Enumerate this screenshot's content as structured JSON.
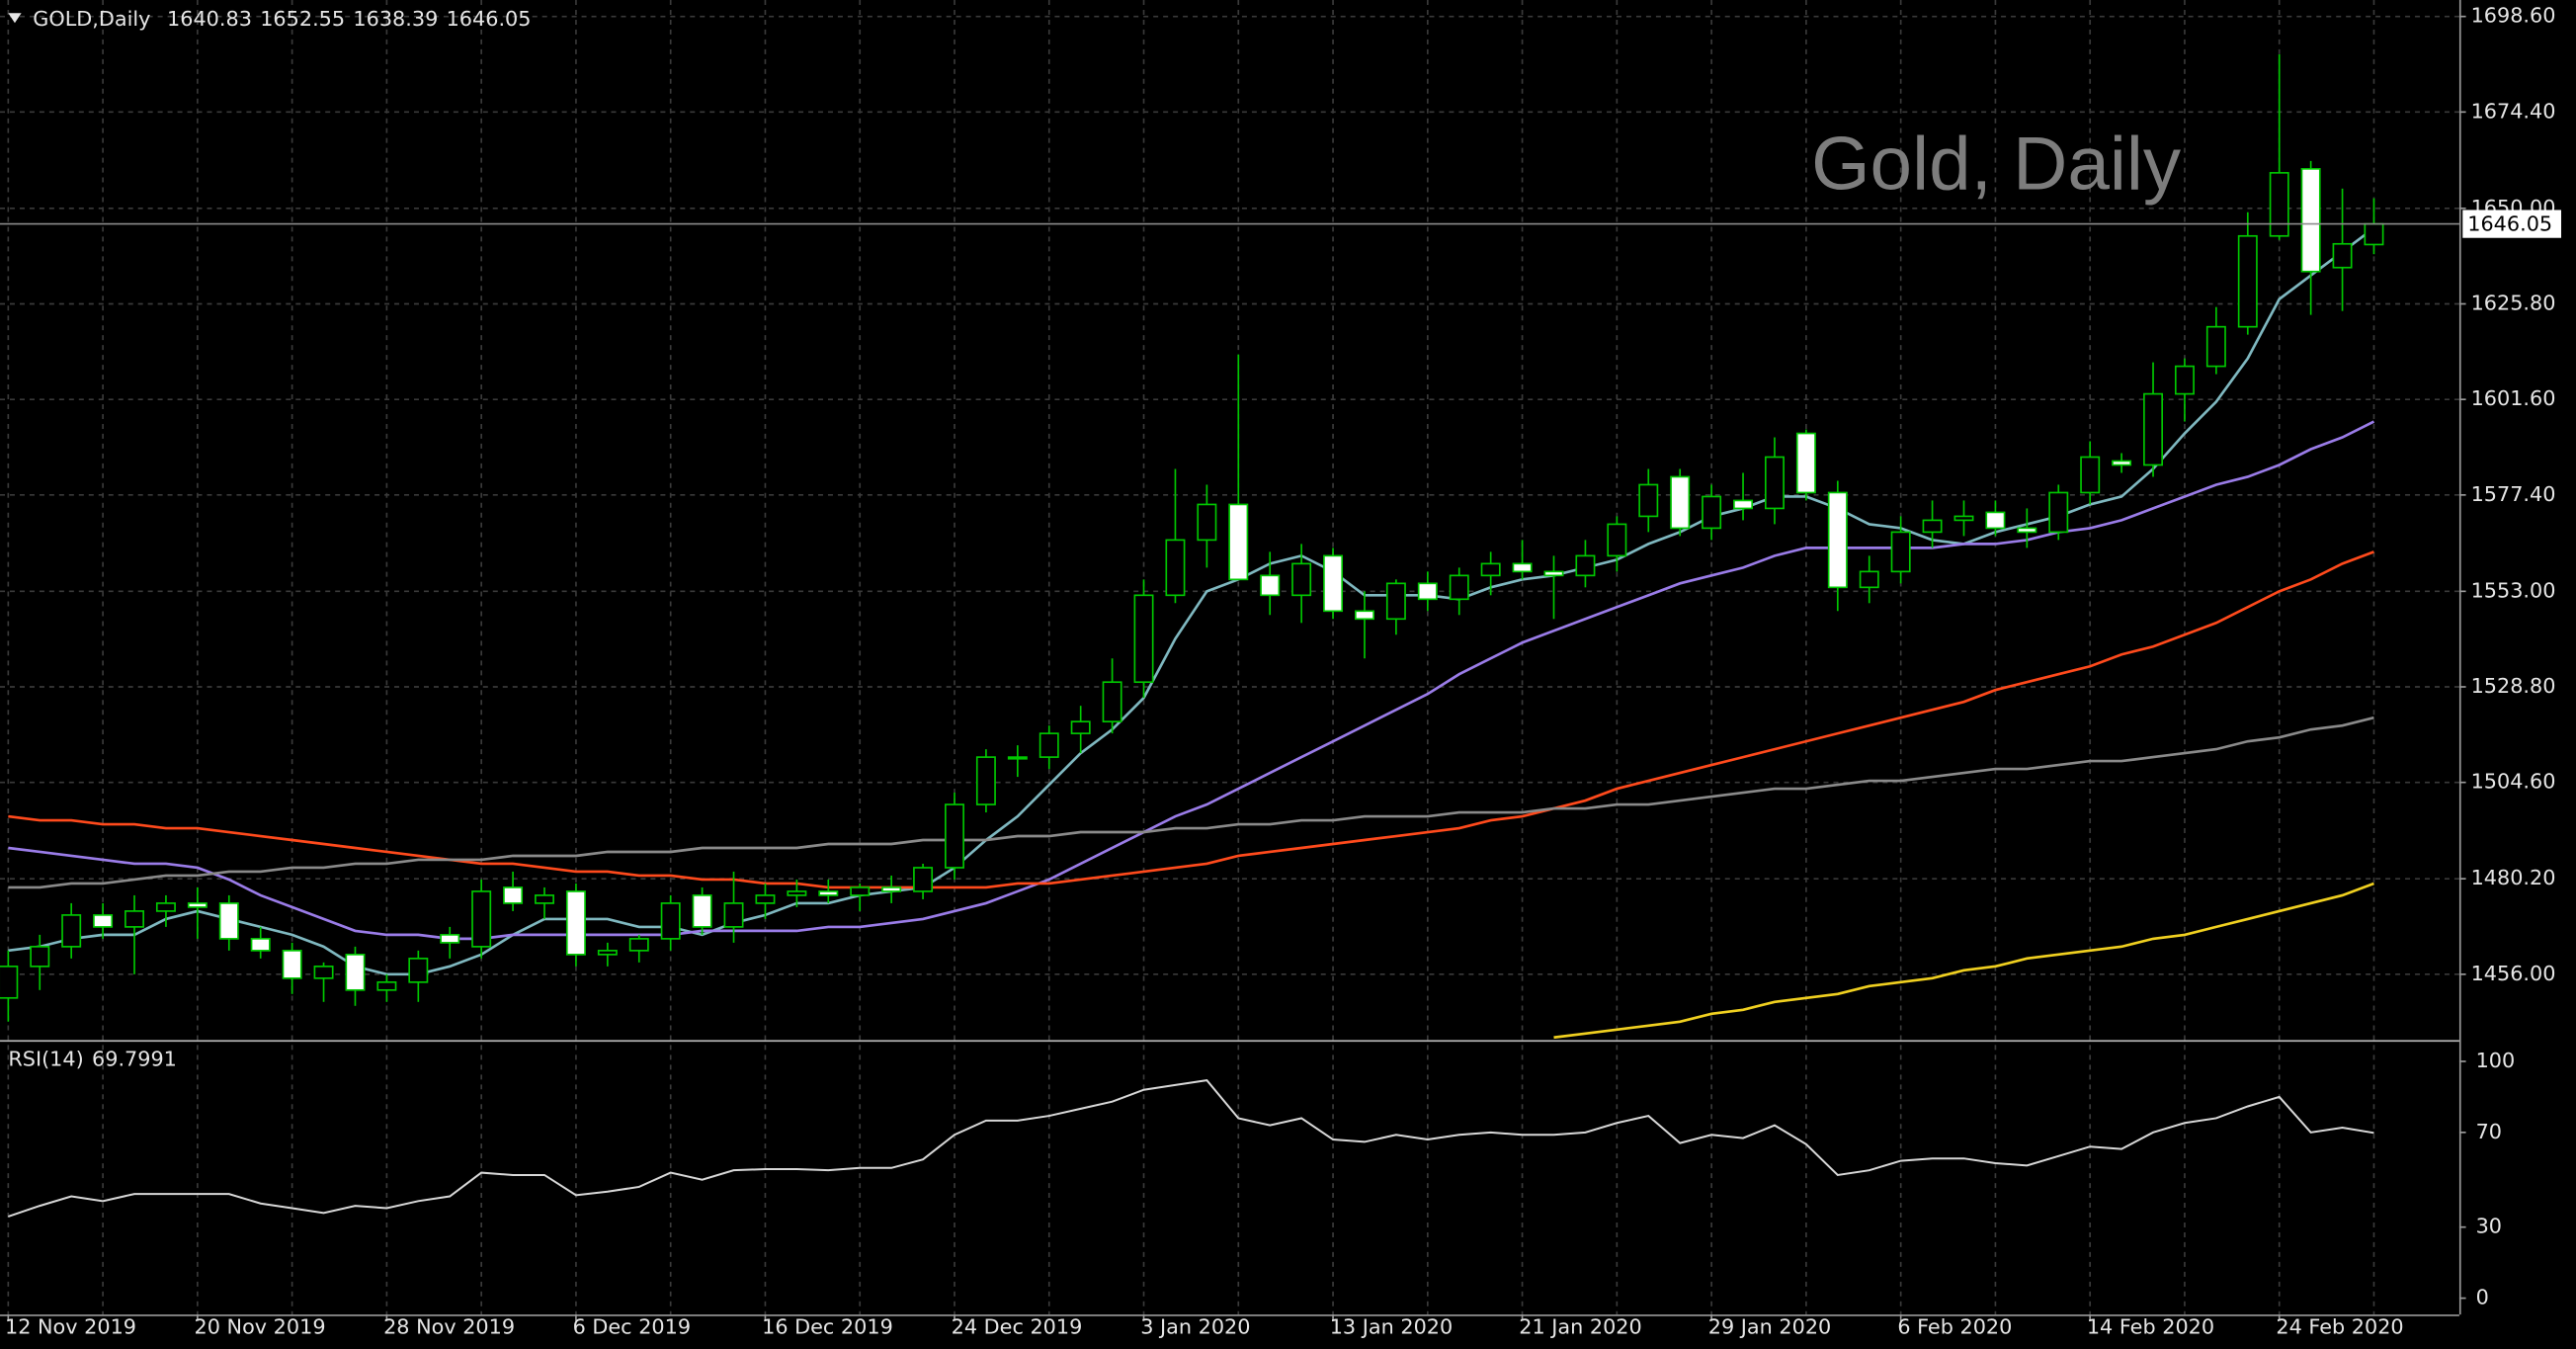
{
  "chart_data": [
    {
      "type": "candlestick",
      "title": "GOLD,Daily",
      "watermark": "Gold, Daily",
      "categories": [
        "12 Nov 2019",
        null,
        null,
        null,
        null,
        null,
        "20 Nov 2019",
        null,
        null,
        null,
        null,
        null,
        "28 Nov 2019",
        null,
        null,
        null,
        null,
        null,
        "6 Dec 2019",
        null,
        null,
        null,
        null,
        null,
        "16 Dec 2019",
        null,
        null,
        null,
        null,
        null,
        "24 Dec 2019",
        null,
        null,
        null,
        null,
        null,
        "3 Jan 2020",
        null,
        null,
        null,
        null,
        null,
        "13 Jan 2020",
        null,
        null,
        null,
        null,
        null,
        "21 Jan 2020",
        null,
        null,
        null,
        null,
        null,
        "29 Jan 2020",
        null,
        null,
        null,
        null,
        null,
        "6 Feb 2020",
        null,
        null,
        null,
        null,
        null,
        "14 Feb 2020",
        null,
        null,
        null,
        null,
        null,
        "24 Feb 2020",
        null,
        null,
        null
      ],
      "open": [
        1450,
        1458,
        1463,
        1471,
        1468,
        1472,
        1474,
        1474,
        1465,
        1462,
        1455,
        1461,
        1452,
        1454,
        1466,
        1463,
        1478,
        1474,
        1477,
        1461,
        1462,
        1465,
        1476,
        1468,
        1474,
        1476,
        1477,
        1476,
        1478,
        1477,
        1483,
        1499,
        1511,
        1511,
        1517,
        1520,
        1530,
        1552,
        1566,
        1575,
        1557,
        1552,
        1562,
        1548,
        1546,
        1555,
        1551,
        1557,
        1560,
        1558,
        1557,
        1562,
        1572,
        1582,
        1569,
        1576,
        1574,
        1593,
        1578,
        1554,
        1558,
        1568,
        1571,
        1573,
        1569,
        1568,
        1578,
        1586,
        1585,
        1603,
        1610,
        1620,
        1643,
        1660,
        1635,
        1640.83
      ],
      "high": [
        1462,
        1466,
        1474,
        1474,
        1476,
        1476,
        1478,
        1476,
        1468,
        1464,
        1459,
        1463,
        1456,
        1462,
        1468,
        1480,
        1482,
        1478,
        1479,
        1464,
        1466,
        1476,
        1478,
        1482,
        1479,
        1480,
        1480,
        1479,
        1481,
        1484,
        1502,
        1513,
        1514,
        1519,
        1524,
        1536,
        1556,
        1584,
        1580,
        1613,
        1563,
        1565,
        1564,
        1553,
        1556,
        1558,
        1559,
        1563,
        1566,
        1562,
        1566,
        1572,
        1584,
        1584,
        1580,
        1583,
        1592,
        1594,
        1581,
        1562,
        1572,
        1576,
        1576,
        1576,
        1574,
        1580,
        1591,
        1588,
        1611,
        1612,
        1625,
        1649,
        1689,
        1662,
        1655,
        1652.55
      ],
      "low": [
        1444,
        1452,
        1460,
        1465,
        1456,
        1468,
        1465,
        1462,
        1460,
        1451,
        1449,
        1448,
        1449,
        1449,
        1460,
        1460,
        1472,
        1470,
        1458,
        1458,
        1459,
        1462,
        1466,
        1464,
        1470,
        1473,
        1474,
        1472,
        1474,
        1475,
        1480,
        1497,
        1506,
        1508,
        1512,
        1517,
        1526,
        1550,
        1559,
        1556,
        1547,
        1545,
        1546,
        1536,
        1542,
        1548,
        1547,
        1552,
        1556,
        1546,
        1554,
        1558,
        1568,
        1567,
        1566,
        1571,
        1570,
        1576,
        1548,
        1550,
        1555,
        1564,
        1567,
        1567,
        1564,
        1566,
        1575,
        1583,
        1582,
        1596,
        1608,
        1618,
        1642,
        1623,
        1624,
        1638.39
      ],
      "close": [
        1458,
        1463,
        1471,
        1468,
        1472,
        1474,
        1473,
        1465,
        1462,
        1455,
        1458,
        1452,
        1454,
        1460,
        1464,
        1477,
        1474,
        1476,
        1461,
        1462,
        1465,
        1474,
        1468,
        1474,
        1476,
        1477,
        1476,
        1478,
        1477,
        1483,
        1499,
        1511,
        1511,
        1517,
        1520,
        1530,
        1552,
        1566,
        1575,
        1556,
        1552,
        1560,
        1548,
        1546,
        1555,
        1551,
        1557,
        1560,
        1558,
        1557,
        1562,
        1570,
        1580,
        1569,
        1577,
        1574,
        1587,
        1578,
        1554,
        1558,
        1568,
        1571,
        1572,
        1569,
        1568,
        1578,
        1587,
        1585,
        1603,
        1610,
        1620,
        1643,
        1659,
        1634,
        1641,
        1646.05
      ],
      "bull_fill": "#000000",
      "bear_fill": "#ffffff",
      "wick_color": "#00c800",
      "lines": [
        {
          "color": "#7fb8c0",
          "values": [
            1462,
            1463,
            1465,
            1466,
            1466,
            1470,
            1472,
            1470,
            1468,
            1466,
            1463,
            1458,
            1456,
            1456,
            1458,
            1461,
            1466,
            1470,
            1470,
            1470,
            1468,
            1468,
            1466,
            1469,
            1471,
            1474,
            1474,
            1476,
            1477,
            1478,
            1483,
            1490,
            1496,
            1504,
            1512,
            1518,
            1526,
            1541,
            1553,
            1556,
            1560,
            1562,
            1558,
            1552,
            1552,
            1552,
            1551,
            1554,
            1556,
            1557,
            1559,
            1561,
            1565,
            1568,
            1572,
            1574,
            1577,
            1577,
            1574,
            1570,
            1569,
            1566,
            1565,
            1568,
            1570,
            1572,
            1575,
            1577,
            1584,
            1593,
            1601,
            1612,
            1627,
            1633,
            1639,
            1645
          ]
        },
        {
          "color": "#9a7ce8",
          "values": [
            1488,
            1487,
            1486,
            1485,
            1484,
            1484,
            1483,
            1480,
            1476,
            1473,
            1470,
            1467,
            1466,
            1466,
            1465,
            1465,
            1466,
            1466,
            1466,
            1466,
            1466,
            1466,
            1467,
            1467,
            1467,
            1467,
            1468,
            1468,
            1469,
            1470,
            1472,
            1474,
            1477,
            1480,
            1484,
            1488,
            1492,
            1496,
            1499,
            1503,
            1507,
            1511,
            1515,
            1519,
            1523,
            1527,
            1532,
            1536,
            1540,
            1543,
            1546,
            1549,
            1552,
            1555,
            1557,
            1559,
            1562,
            1564,
            1564,
            1564,
            1564,
            1564,
            1565,
            1565,
            1566,
            1568,
            1569,
            1571,
            1574,
            1577,
            1580,
            1582,
            1585,
            1589,
            1592,
            1596
          ]
        },
        {
          "color": "#ff4a1c",
          "values": [
            1496,
            1495,
            1495,
            1494,
            1494,
            1493,
            1493,
            1492,
            1491,
            1490,
            1489,
            1488,
            1487,
            1486,
            1485,
            1484,
            1484,
            1483,
            1482,
            1482,
            1481,
            1481,
            1480,
            1480,
            1479,
            1479,
            1478,
            1478,
            1478,
            1478,
            1478,
            1478,
            1479,
            1479,
            1480,
            1481,
            1482,
            1483,
            1484,
            1486,
            1487,
            1488,
            1489,
            1490,
            1491,
            1492,
            1493,
            1495,
            1496,
            1498,
            1500,
            1503,
            1505,
            1507,
            1509,
            1511,
            1513,
            1515,
            1517,
            1519,
            1521,
            1523,
            1525,
            1528,
            1530,
            1532,
            1534,
            1537,
            1539,
            1542,
            1545,
            1549,
            1553,
            1556,
            1560,
            1563
          ]
        },
        {
          "color": "#8a8a8a",
          "values": [
            1478,
            1478,
            1479,
            1479,
            1480,
            1481,
            1481,
            1482,
            1482,
            1483,
            1483,
            1484,
            1484,
            1485,
            1485,
            1485,
            1486,
            1486,
            1486,
            1487,
            1487,
            1487,
            1488,
            1488,
            1488,
            1488,
            1489,
            1489,
            1489,
            1490,
            1490,
            1490,
            1491,
            1491,
            1492,
            1492,
            1492,
            1493,
            1493,
            1494,
            1494,
            1495,
            1495,
            1496,
            1496,
            1496,
            1497,
            1497,
            1497,
            1498,
            1498,
            1499,
            1499,
            1500,
            1501,
            1502,
            1503,
            1503,
            1504,
            1505,
            1505,
            1506,
            1507,
            1508,
            1508,
            1509,
            1510,
            1510,
            1511,
            1512,
            1513,
            1515,
            1516,
            1518,
            1519,
            1521
          ]
        },
        {
          "color": "#f0d020",
          "values": [
            null,
            null,
            null,
            null,
            null,
            null,
            null,
            null,
            null,
            null,
            null,
            null,
            null,
            null,
            null,
            null,
            null,
            null,
            null,
            null,
            null,
            null,
            null,
            null,
            null,
            null,
            null,
            null,
            null,
            null,
            null,
            null,
            null,
            null,
            null,
            null,
            null,
            null,
            null,
            null,
            null,
            null,
            null,
            null,
            null,
            null,
            null,
            null,
            null,
            1440,
            1441,
            1442,
            1443,
            1444,
            1446,
            1447,
            1449,
            1450,
            1451,
            1453,
            1454,
            1455,
            1457,
            1458,
            1460,
            1461,
            1462,
            1463,
            1465,
            1466,
            1468,
            1470,
            1472,
            1474,
            1476,
            1479
          ]
        }
      ],
      "ylim": [
        1439.33,
        1702.77
      ],
      "yticks": [
        {
          "value": 1456,
          "label": "1456.00"
        },
        {
          "value": 1480.2,
          "label": "1480.20"
        },
        {
          "value": 1504.6,
          "label": "1504.60"
        },
        {
          "value": 1528.8,
          "label": "1528.80"
        },
        {
          "value": 1553,
          "label": "1553.00"
        },
        {
          "value": 1577.4,
          "label": "1577.40"
        },
        {
          "value": 1601.6,
          "label": "1601.60"
        },
        {
          "value": 1625.8,
          "label": "1625.80"
        },
        {
          "value": 1650,
          "label": "1650.00"
        },
        {
          "value": 1674.4,
          "label": "1674.40"
        },
        {
          "value": 1698.6,
          "label": "1698.60"
        }
      ],
      "grid": true
    },
    {
      "type": "line",
      "title": "RSI(14)",
      "color": "#d8d8d8",
      "values": [
        34.5,
        39,
        43,
        41,
        44,
        44,
        44,
        44,
        40,
        38,
        36,
        39,
        38,
        41,
        43,
        53,
        52,
        52,
        43.5,
        45,
        47,
        53,
        50,
        54,
        54.5,
        54.5,
        54,
        55,
        55,
        58.6,
        69,
        75,
        75,
        77,
        80,
        83,
        88,
        90,
        92,
        76,
        73,
        76,
        67,
        66,
        69,
        67,
        69,
        70,
        69,
        69,
        70,
        74,
        77,
        65.5,
        69,
        67.6,
        73,
        65,
        52,
        54,
        58,
        59,
        59,
        57,
        56,
        60,
        64,
        63,
        70,
        74,
        76,
        81,
        85,
        70,
        72,
        69.7991
      ],
      "ylim": [
        -6.9,
        107.6
      ],
      "yticks": [
        0,
        30,
        70,
        100
      ]
    }
  ]
}
